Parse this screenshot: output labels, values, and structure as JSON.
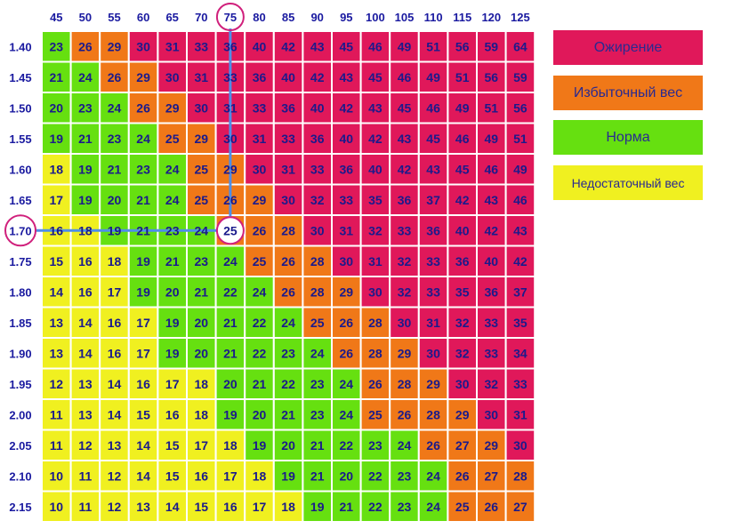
{
  "chart_data": {
    "type": "heatmap",
    "title": "",
    "xlabel": "",
    "ylabel": "",
    "x": [
      "45",
      "50",
      "55",
      "60",
      "65",
      "70",
      "75",
      "80",
      "85",
      "90",
      "95",
      "100",
      "105",
      "110",
      "115",
      "120",
      "125"
    ],
    "y": [
      "1.40",
      "1.45",
      "1.50",
      "1.55",
      "1.60",
      "1.65",
      "1.70",
      "1.75",
      "1.80",
      "1.85",
      "1.90",
      "1.95",
      "2.00",
      "2.05",
      "2.10",
      "2.15"
    ],
    "values": [
      [
        23,
        26,
        29,
        30,
        31,
        33,
        36,
        40,
        42,
        43,
        45,
        46,
        49,
        51,
        56,
        59,
        64
      ],
      [
        21,
        24,
        26,
        29,
        30,
        31,
        33,
        36,
        40,
        42,
        43,
        45,
        46,
        49,
        51,
        56,
        59
      ],
      [
        20,
        23,
        24,
        26,
        29,
        30,
        31,
        33,
        36,
        40,
        42,
        43,
        45,
        46,
        49,
        51,
        56
      ],
      [
        19,
        21,
        23,
        24,
        25,
        29,
        30,
        31,
        33,
        36,
        40,
        42,
        43,
        45,
        46,
        49,
        51
      ],
      [
        18,
        19,
        21,
        23,
        24,
        25,
        29,
        30,
        31,
        33,
        36,
        40,
        42,
        43,
        45,
        46,
        49
      ],
      [
        17,
        19,
        20,
        21,
        24,
        25,
        26,
        29,
        30,
        32,
        33,
        35,
        36,
        37,
        42,
        43,
        46
      ],
      [
        16,
        18,
        19,
        21,
        23,
        24,
        25,
        26,
        28,
        30,
        31,
        32,
        33,
        36,
        40,
        42,
        43
      ],
      [
        15,
        16,
        18,
        19,
        21,
        23,
        24,
        25,
        26,
        28,
        30,
        31,
        32,
        33,
        36,
        40,
        42
      ],
      [
        14,
        16,
        17,
        19,
        20,
        21,
        22,
        24,
        26,
        28,
        29,
        30,
        32,
        33,
        35,
        36,
        37
      ],
      [
        13,
        14,
        16,
        17,
        19,
        20,
        21,
        22,
        24,
        25,
        26,
        28,
        30,
        31,
        32,
        33,
        35
      ],
      [
        13,
        14,
        16,
        17,
        19,
        20,
        21,
        22,
        23,
        24,
        26,
        28,
        29,
        30,
        32,
        33,
        34
      ],
      [
        12,
        13,
        14,
        16,
        17,
        18,
        20,
        21,
        22,
        23,
        24,
        26,
        28,
        29,
        30,
        32,
        33
      ],
      [
        11,
        13,
        14,
        15,
        16,
        18,
        19,
        20,
        21,
        23,
        24,
        25,
        26,
        28,
        29,
        30,
        31
      ],
      [
        11,
        12,
        13,
        14,
        15,
        17,
        18,
        19,
        20,
        21,
        22,
        23,
        24,
        26,
        27,
        29,
        30
      ],
      [
        10,
        11,
        12,
        14,
        15,
        16,
        17,
        18,
        19,
        21,
        20,
        22,
        23,
        24,
        26,
        27,
        28
      ],
      [
        10,
        11,
        12,
        13,
        14,
        15,
        16,
        17,
        18,
        19,
        21,
        22,
        23,
        24,
        25,
        26,
        27
      ]
    ],
    "highlight": {
      "x": "75",
      "y": "1.70",
      "value": 25
    },
    "legend_position": "right",
    "grid": true
  },
  "legend": [
    {
      "label": "Ожирение",
      "color": "#e0185a"
    },
    {
      "label": "Избыточный вес",
      "color": "#f07818"
    },
    {
      "label": "Норма",
      "color": "#66e010"
    },
    {
      "label": "Недостаточный вес",
      "color": "#f0f020"
    }
  ],
  "colors": {
    "underweight": "#f0f020",
    "normal": "#66e010",
    "overweight": "#f07818",
    "obese": "#e0185a",
    "grid": "#ffffff",
    "marker_circle": "#d0207c",
    "marker_line": "#4f8ee8",
    "label_text": "#1a1aa0"
  }
}
